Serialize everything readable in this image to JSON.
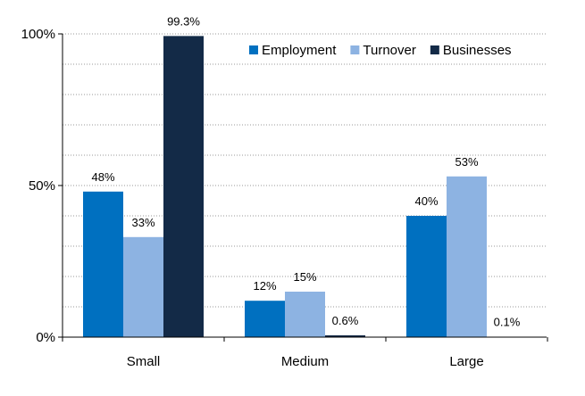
{
  "chart_data": {
    "type": "bar",
    "categories": [
      "Small",
      "Medium",
      "Large"
    ],
    "series": [
      {
        "name": "Employment",
        "values": [
          48,
          12,
          40
        ],
        "labels": [
          "48%",
          "12%",
          "40%"
        ],
        "color": "#0070c0"
      },
      {
        "name": "Turnover",
        "values": [
          33,
          15,
          53
        ],
        "labels": [
          "33%",
          "15%",
          "53%"
        ],
        "color": "#8db3e2"
      },
      {
        "name": "Businesses",
        "values": [
          99.3,
          0.6,
          0.1
        ],
        "labels": [
          "99.3%",
          "0.6%",
          "0.1%"
        ],
        "color": "#132a47"
      }
    ],
    "ylim": [
      0,
      100
    ],
    "yticks": [
      {
        "value": 0,
        "label": "0%"
      },
      {
        "value": 50,
        "label": "50%"
      },
      {
        "value": 100,
        "label": "100%"
      }
    ],
    "minor_gridlines_every": 10,
    "grid": true,
    "legend_position": "top-right",
    "title": "",
    "xlabel": "",
    "ylabel": ""
  }
}
